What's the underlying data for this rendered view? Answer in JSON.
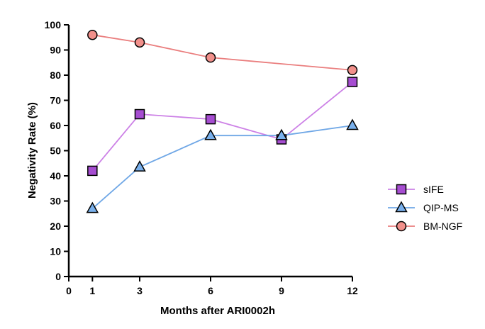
{
  "chart_data": {
    "type": "line",
    "xlabel": "Months after ARI0002h",
    "ylabel": "Negativity Rate (%)",
    "xlim": [
      0,
      12
    ],
    "ylim": [
      0,
      100
    ],
    "x_ticks": [
      0,
      1,
      3,
      6,
      9,
      12
    ],
    "y_ticks": [
      0,
      10,
      20,
      30,
      40,
      50,
      60,
      70,
      80,
      90,
      100
    ],
    "grid": false,
    "legend_position": "right",
    "series": [
      {
        "name": "sIFE",
        "marker": "square",
        "color": "#cc80e6",
        "fill": "#a64dd1",
        "points": [
          [
            1,
            42
          ],
          [
            3,
            64.5
          ],
          [
            6,
            62.5
          ],
          [
            9,
            54.5
          ],
          [
            12,
            77.3
          ]
        ]
      },
      {
        "name": "QIP-MS",
        "marker": "triangle",
        "color": "#6fa7e6",
        "fill": "#79b0ec",
        "points": [
          [
            1,
            27
          ],
          [
            3,
            43.5
          ],
          [
            6,
            56
          ],
          [
            9,
            56
          ],
          [
            12,
            60
          ]
        ]
      },
      {
        "name": "BM-NGF",
        "marker": "circle",
        "color": "#ea7e7e",
        "fill": "#f1908b",
        "points": [
          [
            1,
            96
          ],
          [
            3,
            93
          ],
          [
            6,
            87
          ],
          [
            12,
            82
          ]
        ]
      }
    ]
  }
}
